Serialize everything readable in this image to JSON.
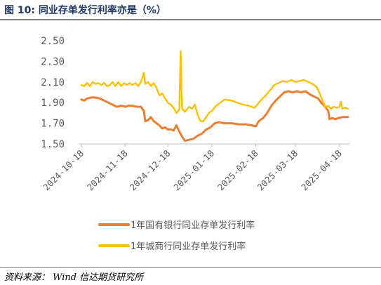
{
  "figure": {
    "title": "图 10:  同业存单发行利率亦是（%）",
    "source": "资料来源：  Wind  信达期货研究所"
  },
  "chart_data": {
    "type": "line",
    "title": "",
    "xlabel": "",
    "ylabel": "",
    "ylim": [
      1.5,
      2.5
    ],
    "yticks": [
      "2.50",
      "2.30",
      "2.10",
      "1.90",
      "1.70",
      "1.50"
    ],
    "xlim": [
      "2024-10-16",
      "2025-04-25"
    ],
    "xticks": [
      "2024-10-18",
      "2024-11-18",
      "2024-12-18",
      "2025-01-18",
      "2025-02-18",
      "2025-03-18",
      "2025-04-18"
    ],
    "grid": false,
    "legend_position": "bottom",
    "colors": {
      "series_1": "#ED7D31",
      "series_2": "#FFC000",
      "axis": "#bfbfbf",
      "title": "#1f3864"
    },
    "series": [
      {
        "name": "1年国有银行同业存单发行利率",
        "color": "#ED7D31",
        "points": [
          [
            "2024-10-18",
            1.93
          ],
          [
            "2024-10-20",
            1.92
          ],
          [
            "2024-10-22",
            1.94
          ],
          [
            "2024-10-25",
            1.95
          ],
          [
            "2024-10-28",
            1.95
          ],
          [
            "2024-10-31",
            1.94
          ],
          [
            "2024-11-03",
            1.92
          ],
          [
            "2024-11-06",
            1.9
          ],
          [
            "2024-11-09",
            1.88
          ],
          [
            "2024-11-12",
            1.86
          ],
          [
            "2024-11-15",
            1.87
          ],
          [
            "2024-11-18",
            1.86
          ],
          [
            "2024-11-20",
            1.87
          ],
          [
            "2024-11-23",
            1.87
          ],
          [
            "2024-11-26",
            1.86
          ],
          [
            "2024-11-29",
            1.86
          ],
          [
            "2024-12-01",
            1.82
          ],
          [
            "2024-12-02",
            1.72
          ],
          [
            "2024-12-04",
            1.73
          ],
          [
            "2024-12-06",
            1.76
          ],
          [
            "2024-12-08",
            1.72
          ],
          [
            "2024-12-10",
            1.7
          ],
          [
            "2024-12-12",
            1.68
          ],
          [
            "2024-12-14",
            1.65
          ],
          [
            "2024-12-16",
            1.66
          ],
          [
            "2024-12-18",
            1.64
          ],
          [
            "2024-12-20",
            1.64
          ],
          [
            "2024-12-22",
            1.63
          ],
          [
            "2024-12-24",
            1.68
          ],
          [
            "2024-12-26",
            1.62
          ],
          [
            "2024-12-28",
            1.57
          ],
          [
            "2024-12-30",
            1.53
          ],
          [
            "2025-01-02",
            1.54
          ],
          [
            "2025-01-05",
            1.55
          ],
          [
            "2025-01-08",
            1.58
          ],
          [
            "2025-01-11",
            1.6
          ],
          [
            "2025-01-14",
            1.64
          ],
          [
            "2025-01-17",
            1.66
          ],
          [
            "2025-01-20",
            1.7
          ],
          [
            "2025-01-23",
            1.71
          ],
          [
            "2025-01-27",
            1.7
          ],
          [
            "2025-02-01",
            1.7
          ],
          [
            "2025-02-06",
            1.69
          ],
          [
            "2025-02-11",
            1.69
          ],
          [
            "2025-02-15",
            1.68
          ],
          [
            "2025-02-18",
            1.67
          ],
          [
            "2025-02-20",
            1.72
          ],
          [
            "2025-02-23",
            1.75
          ],
          [
            "2025-02-26",
            1.8
          ],
          [
            "2025-03-01",
            1.87
          ],
          [
            "2025-03-04",
            1.92
          ],
          [
            "2025-03-07",
            1.96
          ],
          [
            "2025-03-10",
            2.0
          ],
          [
            "2025-03-13",
            2.01
          ],
          [
            "2025-03-16",
            2.0
          ],
          [
            "2025-03-19",
            2.01
          ],
          [
            "2025-03-22",
            2.0
          ],
          [
            "2025-03-25",
            2.01
          ],
          [
            "2025-03-28",
            1.98
          ],
          [
            "2025-03-31",
            1.96
          ],
          [
            "2025-04-03",
            1.94
          ],
          [
            "2025-04-05",
            1.9
          ],
          [
            "2025-04-08",
            1.86
          ],
          [
            "2025-04-10",
            1.82
          ],
          [
            "2025-04-11",
            1.74
          ],
          [
            "2025-04-13",
            1.75
          ],
          [
            "2025-04-15",
            1.74
          ],
          [
            "2025-04-17",
            1.75
          ],
          [
            "2025-04-20",
            1.76
          ],
          [
            "2025-04-24",
            1.76
          ]
        ]
      },
      {
        "name": "1年城商行同业存单发行利率",
        "color": "#FFC000",
        "points": [
          [
            "2024-10-18",
            2.07
          ],
          [
            "2024-10-20",
            2.06
          ],
          [
            "2024-10-22",
            2.09
          ],
          [
            "2024-10-24",
            2.06
          ],
          [
            "2024-10-26",
            2.1
          ],
          [
            "2024-10-28",
            2.08
          ],
          [
            "2024-10-30",
            2.09
          ],
          [
            "2024-11-01",
            2.07
          ],
          [
            "2024-11-03",
            2.09
          ],
          [
            "2024-11-05",
            2.06
          ],
          [
            "2024-11-07",
            2.07
          ],
          [
            "2024-11-09",
            2.1
          ],
          [
            "2024-11-11",
            2.06
          ],
          [
            "2024-11-13",
            2.1
          ],
          [
            "2024-11-15",
            2.06
          ],
          [
            "2024-11-17",
            2.09
          ],
          [
            "2024-11-19",
            2.07
          ],
          [
            "2024-11-21",
            2.09
          ],
          [
            "2024-11-23",
            2.07
          ],
          [
            "2024-11-25",
            2.09
          ],
          [
            "2024-11-27",
            2.06
          ],
          [
            "2024-11-29",
            2.1
          ],
          [
            "2024-12-01",
            2.19
          ],
          [
            "2024-12-02",
            2.08
          ],
          [
            "2024-12-04",
            2.1
          ],
          [
            "2024-12-06",
            2.06
          ],
          [
            "2024-12-08",
            2.09
          ],
          [
            "2024-12-10",
            2.04
          ],
          [
            "2024-12-12",
            1.97
          ],
          [
            "2024-12-14",
            1.99
          ],
          [
            "2024-12-16",
            1.94
          ],
          [
            "2024-12-18",
            1.9
          ],
          [
            "2024-12-20",
            1.88
          ],
          [
            "2024-12-22",
            1.85
          ],
          [
            "2024-12-24",
            1.8
          ],
          [
            "2024-12-26",
            1.83
          ],
          [
            "2024-12-27",
            2.4
          ],
          [
            "2024-12-28",
            1.84
          ],
          [
            "2024-12-30",
            1.81
          ],
          [
            "2025-01-02",
            1.86
          ],
          [
            "2025-01-04",
            1.84
          ],
          [
            "2025-01-06",
            1.88
          ],
          [
            "2025-01-08",
            1.78
          ],
          [
            "2025-01-10",
            1.72
          ],
          [
            "2025-01-12",
            1.72
          ],
          [
            "2025-01-14",
            1.76
          ],
          [
            "2025-01-16",
            1.8
          ],
          [
            "2025-01-18",
            1.82
          ],
          [
            "2025-01-21",
            1.87
          ],
          [
            "2025-01-24",
            1.9
          ],
          [
            "2025-01-27",
            1.93
          ],
          [
            "2025-02-01",
            1.92
          ],
          [
            "2025-02-05",
            1.9
          ],
          [
            "2025-02-09",
            1.88
          ],
          [
            "2025-02-13",
            1.87
          ],
          [
            "2025-02-17",
            1.85
          ],
          [
            "2025-02-19",
            1.88
          ],
          [
            "2025-02-22",
            1.93
          ],
          [
            "2025-02-25",
            1.97
          ],
          [
            "2025-02-28",
            2.02
          ],
          [
            "2025-03-03",
            2.07
          ],
          [
            "2025-03-06",
            2.09
          ],
          [
            "2025-03-09",
            2.11
          ],
          [
            "2025-03-12",
            2.1
          ],
          [
            "2025-03-15",
            2.12
          ],
          [
            "2025-03-18",
            2.1
          ],
          [
            "2025-03-21",
            2.11
          ],
          [
            "2025-03-24",
            2.12
          ],
          [
            "2025-03-27",
            2.1
          ],
          [
            "2025-03-30",
            2.08
          ],
          [
            "2025-04-02",
            2.05
          ],
          [
            "2025-04-04",
            1.99
          ],
          [
            "2025-04-06",
            1.92
          ],
          [
            "2025-04-08",
            1.86
          ],
          [
            "2025-04-10",
            1.87
          ],
          [
            "2025-04-12",
            1.84
          ],
          [
            "2025-04-14",
            1.86
          ],
          [
            "2025-04-16",
            1.85
          ],
          [
            "2025-04-18",
            1.86
          ],
          [
            "2025-04-19",
            1.91
          ],
          [
            "2025-04-20",
            1.84
          ],
          [
            "2025-04-22",
            1.85
          ],
          [
            "2025-04-24",
            1.84
          ]
        ]
      }
    ]
  }
}
